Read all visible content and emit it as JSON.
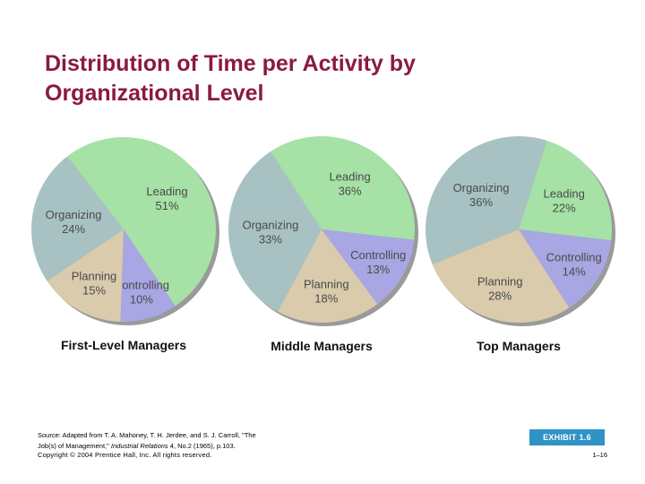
{
  "title": {
    "line1": "Distribution of Time per Activity by",
    "line2": "Organizational Level"
  },
  "colors": {
    "title": "#8b1a3e",
    "Organizing": "#a8c2c4",
    "Planning": "#d9cbac",
    "Controlling": "#a9a6e4",
    "Leading": "#a6e1a6",
    "label": "#4a4a4a",
    "exhibit": "#2f93c6"
  },
  "chart_data": [
    {
      "type": "pie",
      "title": "First-Level Managers",
      "slices": [
        {
          "label": "Organizing",
          "value": 24
        },
        {
          "label": "Leading",
          "value": 51
        },
        {
          "label": "Controlling",
          "value": 10
        },
        {
          "label": "Planning",
          "value": 15
        }
      ]
    },
    {
      "type": "pie",
      "title": "Middle Managers",
      "slices": [
        {
          "label": "Organizing",
          "value": 33
        },
        {
          "label": "Leading",
          "value": 36
        },
        {
          "label": "Controlling",
          "value": 13
        },
        {
          "label": "Planning",
          "value": 18
        }
      ]
    },
    {
      "type": "pie",
      "title": "Top Managers",
      "slices": [
        {
          "label": "Organizing",
          "value": 36
        },
        {
          "label": "Leading",
          "value": 22
        },
        {
          "label": "Controlling",
          "value": 14
        },
        {
          "label": "Planning",
          "value": 28
        }
      ]
    }
  ],
  "footer": {
    "source_prefix": "Source: Adapted from T. A. Mahoney, T. H. Jerdee, and S. J. Carroll, \"The",
    "source_line2a": "Job(s) of Management,\"",
    "source_journal": "Industrial Relations",
    "source_line2b": " 4, No.2 (1965), p.103.",
    "copyright": "Copyright © 2004 Prentice Hall, Inc. All rights reserved.",
    "exhibit": "EXHIBIT 1.6",
    "page": "1–16"
  }
}
